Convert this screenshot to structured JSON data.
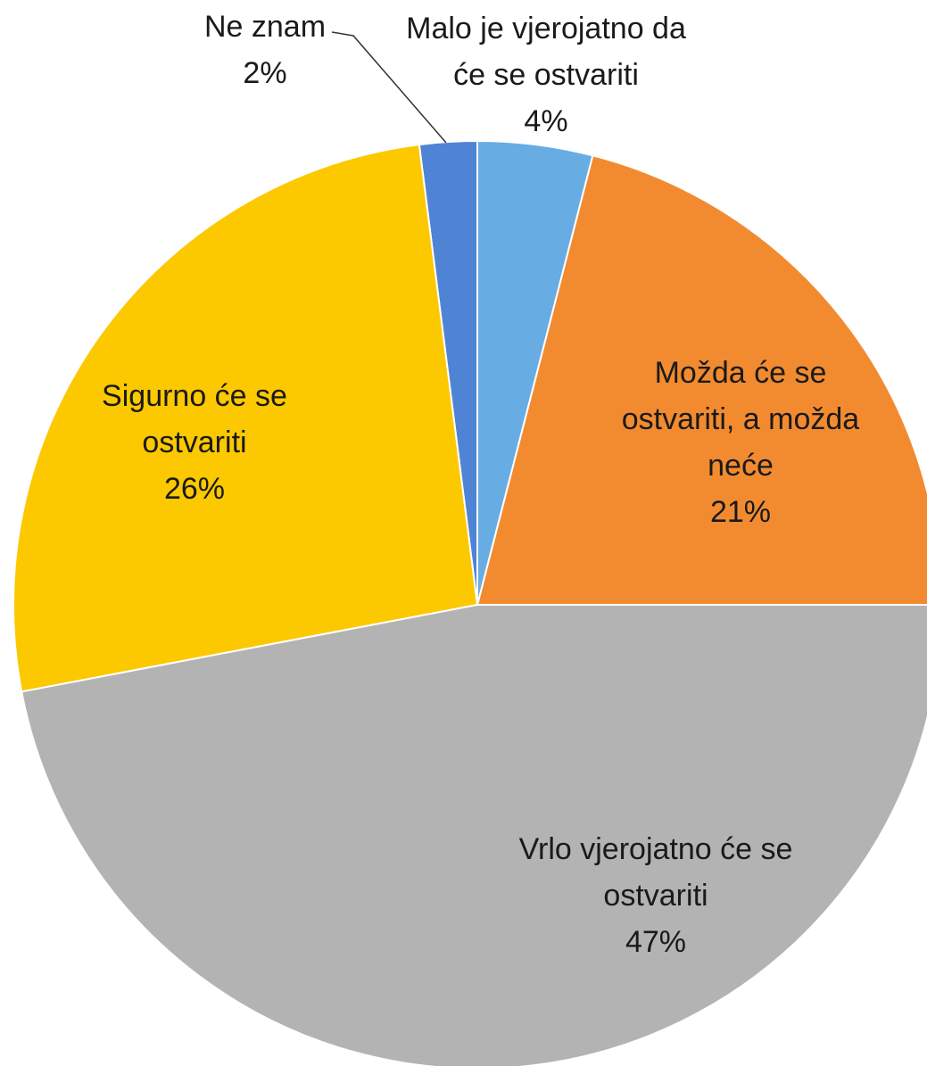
{
  "chart_data": {
    "type": "pie",
    "categories": [
      "Malo je vjerojatno da će se ostvariti",
      "Možda će se ostvariti, a možda neće",
      "Vrlo vjerojatno će se ostvariti",
      "Sigurno će se ostvariti",
      "Ne znam"
    ],
    "values": [
      4,
      21,
      47,
      26,
      2
    ],
    "value_labels": [
      "4%",
      "21%",
      "47%",
      "26%",
      "2%"
    ],
    "colors": [
      "#67ade3",
      "#f28b30",
      "#b3b3b3",
      "#fcc800",
      "#4f84d4"
    ]
  }
}
